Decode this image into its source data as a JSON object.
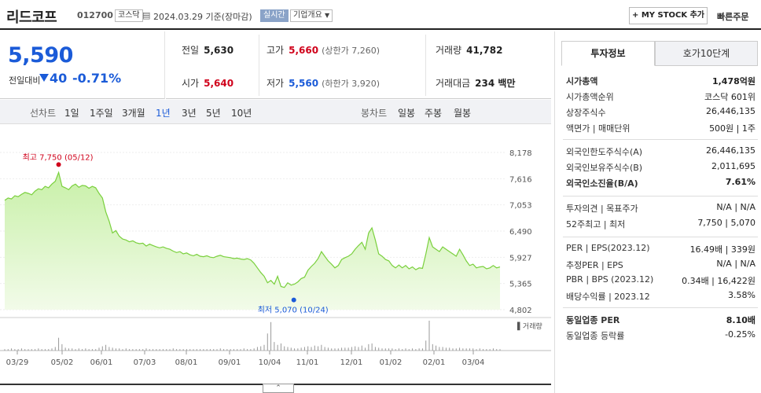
{
  "header": {
    "name": "리드코프",
    "code": "012700",
    "market": "코스닥",
    "date": "2024.03.29 기준(장마감)",
    "realtime_label": "실시간",
    "corp_info_label": "기업개요",
    "mystock_label": "+ MY STOCK 추가",
    "quick_order_label": "빠른주문"
  },
  "price": {
    "current": "5,590",
    "change_label": "전일대비",
    "change": "40",
    "change_pct": "-0.71%"
  },
  "stats": {
    "prev_close": {
      "label": "전일",
      "value": "5,630"
    },
    "high": {
      "label": "고가",
      "value": "5,660",
      "sub": "(상한가 7,260)"
    },
    "volume": {
      "label": "거래량",
      "value": "41,782"
    },
    "open": {
      "label": "시가",
      "value": "5,640"
    },
    "low": {
      "label": "저가",
      "value": "5,560",
      "sub": "(하한가 3,920)"
    },
    "amount": {
      "label": "거래대금",
      "value": "234 백만"
    }
  },
  "tabs": {
    "line_label": "선차트",
    "line_periods": [
      "1일",
      "1주일",
      "3개월",
      "1년",
      "3년",
      "5년",
      "10년"
    ],
    "selected_period": "1년",
    "candle_label": "봉차트",
    "candle_periods": [
      "일봉",
      "주봉",
      "월봉"
    ]
  },
  "chart_data": {
    "type": "area",
    "y_ticks": [
      "8,178",
      "7,616",
      "7,053",
      "6,490",
      "5,927",
      "5,365",
      "4,802"
    ],
    "ylim": [
      4802,
      8178
    ],
    "x_ticks": [
      "03/29",
      "05/02",
      "06/01",
      "07/03",
      "08/01",
      "09/01",
      "10/04",
      "11/01",
      "12/01",
      "01/02",
      "02/01",
      "03/04"
    ],
    "high_label": "최고 7,750 (05/12)",
    "low_label": "최저 5,070 (10/24)",
    "volume_label": "거래량",
    "series": [
      {
        "values": [
          7150,
          7200,
          7180,
          7250,
          7230,
          7280,
          7320,
          7300,
          7270,
          7350,
          7400,
          7380,
          7450,
          7420,
          7500,
          7560,
          7750,
          7450,
          7420,
          7380,
          7460,
          7500,
          7430,
          7470,
          7460,
          7410,
          7450,
          7420,
          7300,
          7200,
          6900,
          6700,
          6450,
          6500,
          6380,
          6320,
          6300,
          6260,
          6280,
          6240,
          6220,
          6230,
          6170,
          6210,
          6180,
          6150,
          6130,
          6150,
          6120,
          6100,
          6060,
          6030,
          6050,
          6000,
          6020,
          5980,
          5960,
          5990,
          5950,
          5940,
          5960,
          5930,
          5920,
          5950,
          5970,
          5940,
          5930,
          5920,
          5900,
          5910,
          5890,
          5880,
          5900,
          5870,
          5800,
          5700,
          5600,
          5520,
          5380,
          5430,
          5350,
          5520,
          5300,
          5280,
          5380,
          5330,
          5350,
          5400,
          5470,
          5500,
          5650,
          5730,
          5800,
          5900,
          6050,
          5950,
          5850,
          5780,
          5700,
          5750,
          5880,
          5920,
          5950,
          6000,
          6100,
          6180,
          6250,
          6100,
          6450,
          6560,
          6300,
          6000,
          5950,
          5880,
          5850,
          5750,
          5700,
          5760,
          5700,
          5750,
          5680,
          5720,
          5660,
          5700,
          5690,
          6000,
          6350,
          6150,
          6100,
          6050,
          6150,
          6100,
          6050,
          6000,
          5950,
          6100,
          5980,
          5850,
          5750,
          5780,
          5700,
          5720,
          5730,
          5680,
          5700,
          5750,
          5700,
          5720
        ]
      }
    ],
    "volume": [
      2,
      2,
      3,
      2,
      2,
      3,
      2,
      2,
      2,
      2,
      3,
      2,
      2,
      2,
      3,
      5,
      18,
      9,
      4,
      3,
      3,
      2,
      3,
      2,
      3,
      2,
      2,
      2,
      4,
      6,
      8,
      5,
      4,
      3,
      3,
      2,
      3,
      2,
      2,
      2,
      2,
      2,
      3,
      2,
      2,
      2,
      2,
      2,
      2,
      2,
      3,
      2,
      2,
      2,
      2,
      2,
      2,
      2,
      2,
      2,
      2,
      2,
      2,
      2,
      3,
      2,
      2,
      2,
      2,
      2,
      2,
      3,
      2,
      2,
      3,
      5,
      6,
      8,
      24,
      40,
      12,
      8,
      10,
      6,
      5,
      4,
      3,
      3,
      4,
      5,
      6,
      5,
      7,
      6,
      8,
      5,
      4,
      3,
      3,
      3,
      4,
      4,
      4,
      5,
      6,
      5,
      7,
      4,
      9,
      10,
      5,
      4,
      3,
      3,
      3,
      3,
      2,
      3,
      2,
      3,
      2,
      3,
      2,
      3,
      3,
      14,
      42,
      9,
      7,
      5,
      5,
      4,
      4,
      3,
      3,
      4,
      3,
      3,
      3,
      3,
      2,
      3,
      2,
      2,
      2,
      3,
      2,
      2
    ]
  },
  "panel": {
    "tab_active": "투자정보",
    "tab_other": "호가10단계",
    "rows": [
      {
        "k": "시가총액",
        "v": "1,478억원",
        "bold": true
      },
      {
        "k": "시가총액순위",
        "v": "코스닥 601위"
      },
      {
        "k": "상장주식수",
        "v": "26,446,135"
      },
      {
        "k": "액면가 | 매매단위",
        "v": "500원 | 1주"
      },
      {
        "k": "외국인한도주식수(A)",
        "v": "26,446,135"
      },
      {
        "k": "외국인보유주식수(B)",
        "v": "2,011,695"
      },
      {
        "k": "외국인소진율(B/A)",
        "v": "7.61%",
        "bold": true
      },
      {
        "k": "투자의견 | 목표주가",
        "v": "N/A | N/A"
      },
      {
        "k": "52주최고 | 최저",
        "v": "7,750 | 5,070"
      },
      {
        "k": "PER | EPS(2023.12)",
        "v": "16.49배 | 339원"
      },
      {
        "k": "추정PER | EPS",
        "v": "N/A | N/A"
      },
      {
        "k": "PBR | BPS (2023.12)",
        "v": "0.34배 | 16,422원"
      },
      {
        "k": "배당수익률 | 2023.12",
        "v": "3.58%"
      },
      {
        "k": "동일업종 PER",
        "v": "8.10배",
        "bold": true
      },
      {
        "k": "동일업종 등락률",
        "v": "-0.25%",
        "blue": true
      }
    ]
  }
}
